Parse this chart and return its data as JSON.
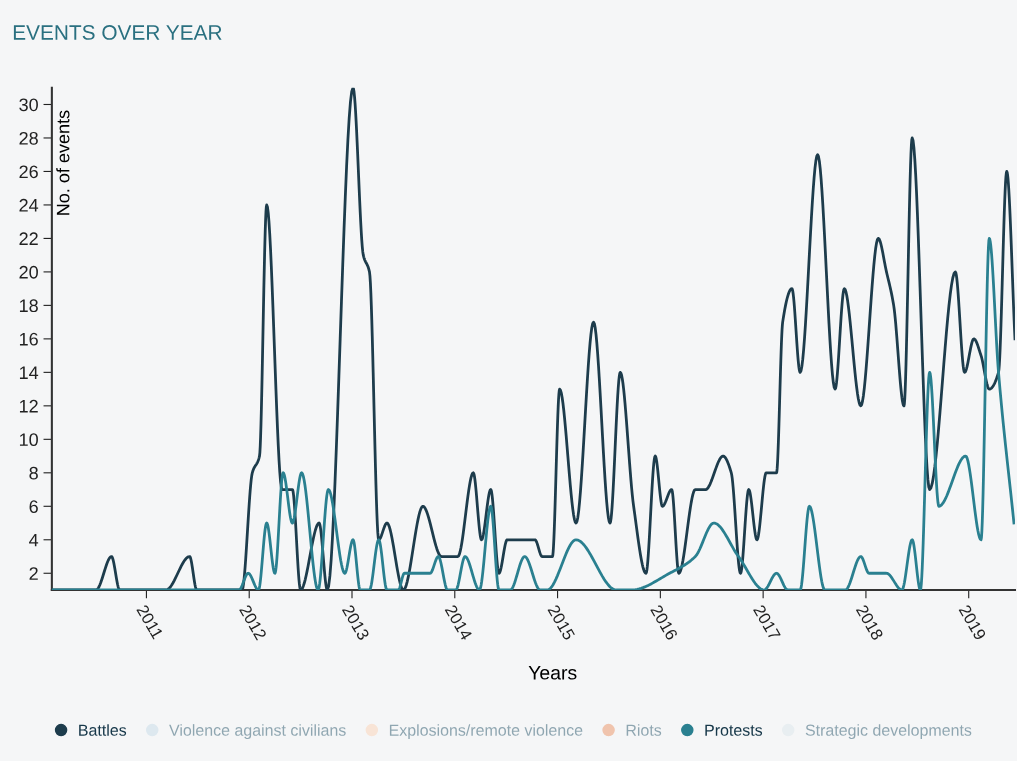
{
  "chart_data": {
    "type": "line",
    "title": "EVENTS OVER YEAR",
    "xlabel": "Years",
    "ylabel": "No. of events",
    "xlim": [
      2010.08,
      2019.45
    ],
    "ylim": [
      1,
      31
    ],
    "xticks": [
      {
        "value": 2011,
        "label": "2011"
      },
      {
        "value": 2012,
        "label": "2012"
      },
      {
        "value": 2013,
        "label": "2013"
      },
      {
        "value": 2014,
        "label": "2014"
      },
      {
        "value": 2015,
        "label": "2015"
      },
      {
        "value": 2016,
        "label": "2016"
      },
      {
        "value": 2017,
        "label": "2017"
      },
      {
        "value": 2018,
        "label": "2018"
      },
      {
        "value": 2019,
        "label": "2019"
      }
    ],
    "yticks": [
      2,
      4,
      6,
      8,
      10,
      12,
      14,
      16,
      18,
      20,
      22,
      24,
      26,
      28,
      30
    ],
    "grid": false,
    "legend": "bottom",
    "marker": "none",
    "line_style": "solid",
    "series": [
      {
        "name": "Battles",
        "color": "#1d3c4c",
        "x": [
          2010.08,
          2010.51,
          2010.66,
          2010.74,
          2011.19,
          2011.42,
          2011.49,
          2011.93,
          2012.03,
          2012.1,
          2012.17,
          2012.32,
          2012.42,
          2012.5,
          2012.68,
          2012.76,
          2013.01,
          2013.11,
          2013.17,
          2013.26,
          2013.34,
          2013.5,
          2013.69,
          2013.87,
          2014.03,
          2014.18,
          2014.26,
          2014.35,
          2014.43,
          2014.51,
          2014.78,
          2014.85,
          2014.95,
          2015.02,
          2015.18,
          2015.35,
          2015.51,
          2015.61,
          2015.74,
          2015.86,
          2015.95,
          2016.02,
          2016.11,
          2016.18,
          2016.34,
          2016.44,
          2016.61,
          2016.69,
          2016.78,
          2016.86,
          2016.94,
          2017.03,
          2017.13,
          2017.19,
          2017.28,
          2017.36,
          2017.53,
          2017.7,
          2017.79,
          2017.95,
          2018.12,
          2018.2,
          2018.27,
          2018.37,
          2018.45,
          2018.62,
          2018.87,
          2018.96,
          2019.05,
          2019.12,
          2019.2,
          2019.29,
          2019.37,
          2019.45
        ],
        "values": [
          1,
          1,
          3,
          1,
          1,
          3,
          1,
          1,
          8,
          9,
          24,
          7,
          7,
          1,
          5,
          1,
          31,
          21,
          20,
          4,
          5,
          1,
          6,
          3,
          3,
          8,
          4,
          7,
          2,
          4,
          4,
          3,
          3,
          13,
          5,
          17,
          5,
          14,
          6,
          2,
          9,
          6,
          7,
          2,
          7,
          7,
          9,
          8,
          2,
          7,
          4,
          8,
          8,
          17,
          19,
          14,
          27,
          13,
          19,
          12,
          22,
          20,
          18,
          12,
          28,
          7,
          20,
          14,
          16,
          15,
          13,
          14,
          26,
          16
        ]
      },
      {
        "name": "Violence against civilians",
        "color": "#dde8ef"
      },
      {
        "name": "Explosions/remote violence",
        "color": "#f8e4d6"
      },
      {
        "name": "Riots",
        "color": "#f0c4ad"
      },
      {
        "name": "Protests",
        "color": "#2a8090",
        "x": [
          2010.08,
          2011.9,
          2011.99,
          2012.09,
          2012.17,
          2012.25,
          2012.33,
          2012.42,
          2012.51,
          2012.67,
          2012.77,
          2012.93,
          2013.01,
          2013.08,
          2013.17,
          2013.26,
          2013.34,
          2013.45,
          2013.51,
          2013.76,
          2013.84,
          2013.93,
          2014.01,
          2014.1,
          2014.24,
          2014.35,
          2014.43,
          2014.54,
          2014.68,
          2014.83,
          2014.9,
          2015.18,
          2015.57,
          2015.72,
          2016.09,
          2016.34,
          2016.52,
          2016.76,
          2017.01,
          2017.13,
          2017.24,
          2017.36,
          2017.45,
          2017.6,
          2017.8,
          2017.95,
          2018.03,
          2018.2,
          2018.35,
          2018.45,
          2018.53,
          2018.62,
          2018.71,
          2018.97,
          2019.12,
          2019.2,
          2019.29,
          2019.44
        ],
        "values": [
          1,
          1,
          2,
          1,
          5,
          2,
          8,
          5,
          8,
          1,
          7,
          2,
          4,
          1,
          1,
          4,
          1,
          1,
          2,
          2,
          3,
          1,
          1,
          3,
          1,
          6,
          1,
          1,
          3,
          1,
          1,
          4,
          1,
          1,
          2,
          3,
          5,
          3,
          1,
          2,
          1,
          1,
          6,
          1,
          1,
          3,
          2,
          2,
          1,
          4,
          1,
          14,
          6,
          9,
          4,
          22,
          14,
          5
        ]
      },
      {
        "name": "Strategic developments",
        "color": "#e8eef1"
      }
    ]
  }
}
